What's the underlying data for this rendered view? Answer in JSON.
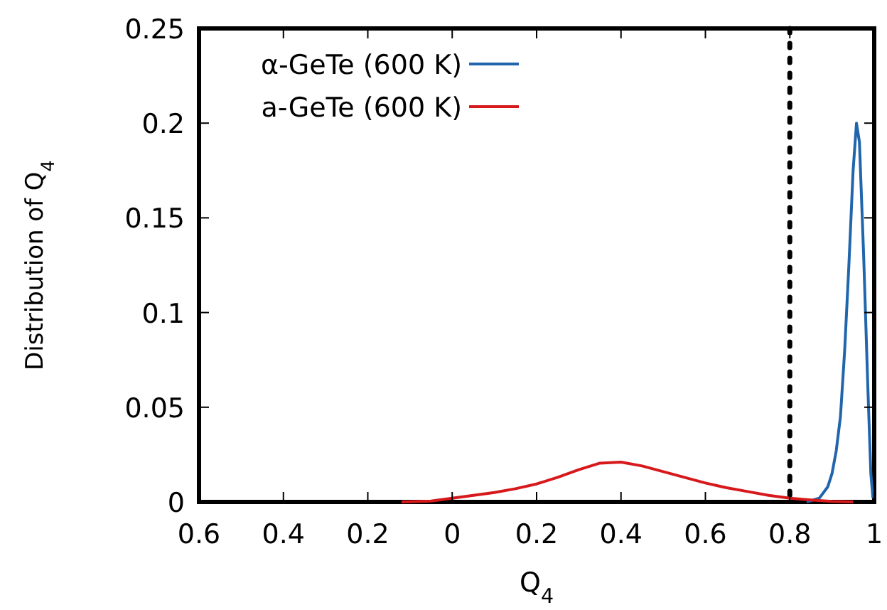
{
  "chart_data": {
    "type": "line",
    "xlabel": "Q$_{4}$",
    "ylabel": "Distribution of Q$_{4}$",
    "xlim": [
      -0.6,
      1
    ],
    "xticks": [
      {
        "value": -0.6,
        "label": "0.6"
      },
      {
        "value": -0.4,
        "label": "0.4"
      },
      {
        "value": -0.2,
        "label": "0.2"
      },
      0,
      0.2,
      0.4,
      0.6,
      0.8,
      1
    ],
    "ylim": [
      0,
      0.25
    ],
    "yticks": [
      0,
      0.05,
      0.1,
      0.15,
      0.2,
      0.25
    ],
    "grid": false,
    "legend": "top left",
    "marker": "none",
    "line_style": "solid",
    "ref_lines": [
      {
        "axis": "x",
        "value": 0.8,
        "color": "#000000",
        "line_style": "dotted"
      }
    ],
    "series": [
      {
        "name": "α-GeTe (600 K)",
        "color": "#2166ac",
        "x": [
          0.84,
          0.87,
          0.89,
          0.9,
          0.91,
          0.92,
          0.93,
          0.94,
          0.95,
          0.958,
          0.965,
          0.975,
          0.985,
          0.992,
          0.997
        ],
        "values": [
          0,
          0.002,
          0.008,
          0.015,
          0.027,
          0.045,
          0.08,
          0.125,
          0.175,
          0.2,
          0.19,
          0.13,
          0.06,
          0.015,
          0.002
        ]
      },
      {
        "name": "a-GeTe (600 K)",
        "color": "#d7191c",
        "x": [
          -0.12,
          -0.05,
          0,
          0.05,
          0.1,
          0.15,
          0.2,
          0.25,
          0.3,
          0.35,
          0.4,
          0.45,
          0.5,
          0.55,
          0.6,
          0.65,
          0.7,
          0.75,
          0.8,
          0.85,
          0.9,
          0.95
        ],
        "values": [
          0,
          0.0005,
          0.002,
          0.0035,
          0.005,
          0.007,
          0.0095,
          0.013,
          0.017,
          0.0205,
          0.021,
          0.019,
          0.016,
          0.013,
          0.01,
          0.0075,
          0.0055,
          0.0035,
          0.002,
          0.001,
          0.0003,
          0
        ]
      }
    ]
  }
}
